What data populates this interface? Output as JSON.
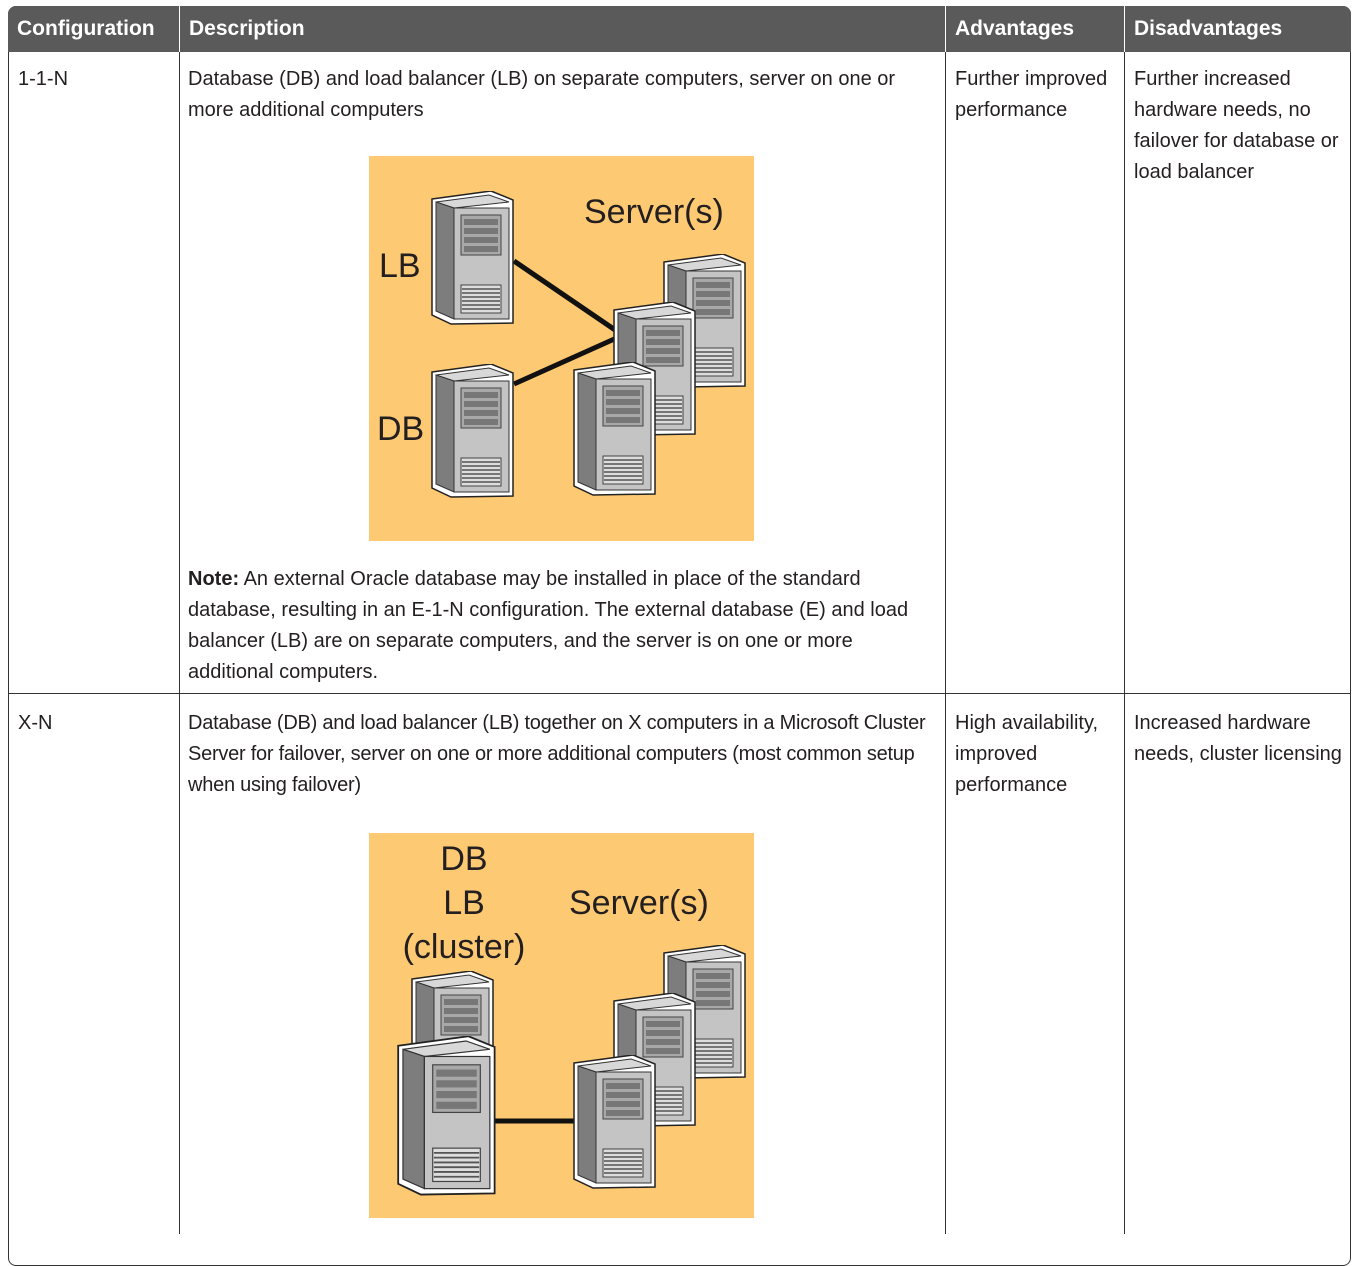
{
  "table": {
    "header": [
      "Configuration",
      "Description",
      "Advantages",
      "Disadvantages"
    ],
    "rows": [
      {
        "configuration": "1-1-N",
        "description": "Database (DB) and load balancer (LB) on separate computers, server on one or more additional computers",
        "diagram": {
          "labels": [
            "LB",
            "DB",
            "Server(s)"
          ]
        },
        "note_label": "Note:",
        "note": "An external Oracle database may be installed in place of the standard database, resulting in an E-1-N configuration. The external database (E) and load balancer (LB) are on separate computers, and the server is on one or more additional computers.",
        "advantages": "Further improved performance",
        "disadvantages": "Further increased hardware needs, no failover for database or load balancer"
      },
      {
        "configuration": "X-N",
        "description": "Database (DB) and load balancer (LB) together on X computers in a Microsoft Cluster Server for failover, server on one or more additional computers (most common setup when using failover)",
        "diagram": {
          "labels": [
            "DB",
            "LB",
            "(cluster)",
            "Server(s)"
          ]
        },
        "advantages": "High availability, improved performance",
        "disadvantages": "Increased hardware needs, cluster licensing"
      }
    ]
  }
}
